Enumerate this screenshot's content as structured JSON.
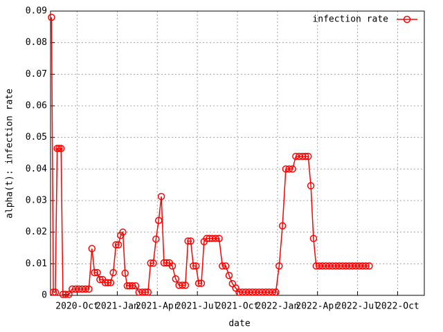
{
  "chart_data": {
    "type": "line",
    "xlabel": "date",
    "ylabel": "alpha(t): infection rate",
    "x": [
      "2020-08",
      "2020-08",
      "2020-08",
      "2020-08",
      "2020-08",
      "2020-08",
      "2020-08",
      "2020-09",
      "2020-09",
      "2020-09",
      "2020-09",
      "2020-10",
      "2020-10",
      "2020-10",
      "2020-10",
      "2020-11",
      "2020-11",
      "2020-11",
      "2020-11",
      "2020-11",
      "2020-12",
      "2020-12",
      "2020-12",
      "2020-12",
      "2020-12",
      "2021-01",
      "2021-01",
      "2021-01",
      "2021-01",
      "2021-01",
      "2021-01",
      "2021-02",
      "2021-02",
      "2021-02",
      "2021-02",
      "2021-03",
      "2021-03",
      "2021-03",
      "2021-03",
      "2021-03",
      "2021-04",
      "2021-04",
      "2021-04",
      "2021-04",
      "2021-04",
      "2021-05",
      "2021-05",
      "2021-05",
      "2021-05",
      "2021-06",
      "2021-06",
      "2021-06",
      "2021-06",
      "2021-06",
      "2021-07",
      "2021-07",
      "2021-07",
      "2021-07",
      "2021-07",
      "2021-08",
      "2021-08",
      "2021-08",
      "2021-08",
      "2021-09",
      "2021-09",
      "2021-09",
      "2021-09",
      "2021-10",
      "2021-10",
      "2021-10",
      "2021-10",
      "2021-11",
      "2021-11",
      "2021-11",
      "2021-11",
      "2021-12",
      "2021-12",
      "2021-12",
      "2021-12",
      "2022-01",
      "2022-01",
      "2022-01",
      "2022-01",
      "2022-02",
      "2022-02",
      "2022-02",
      "2022-02",
      "2022-03",
      "2022-03",
      "2022-03",
      "2022-03",
      "2022-03",
      "2022-04",
      "2022-04",
      "2022-04",
      "2022-04",
      "2022-05",
      "2022-05",
      "2022-05",
      "2022-05",
      "2022-06",
      "2022-06",
      "2022-06",
      "2022-06",
      "2022-07",
      "2022-07",
      "2022-07",
      "2022-07"
    ],
    "series": [
      {
        "name": "infection rate",
        "color": "#ff0000",
        "values": [
          0.088,
          0.001,
          0.001,
          0.0465,
          0.0465,
          0.0465,
          0.0003,
          0.0003,
          0.0003,
          0.002,
          0.002,
          0.002,
          0.002,
          0.002,
          0.002,
          0.0148,
          0.0072,
          0.0072,
          0.005,
          0.005,
          0.004,
          0.004,
          0.004,
          0.0072,
          0.016,
          0.016,
          0.019,
          0.02,
          0.007,
          0.003,
          0.003,
          0.003,
          0.003,
          0.001,
          0.001,
          0.001,
          0.001,
          0.0102,
          0.0102,
          0.0178,
          0.0237,
          0.0313,
          0.0103,
          0.0103,
          0.0103,
          0.0093,
          0.0052,
          0.0032,
          0.0032,
          0.0032,
          0.0172,
          0.0172,
          0.0093,
          0.0093,
          0.0038,
          0.0038,
          0.017,
          0.018,
          0.018,
          0.018,
          0.018,
          0.018,
          0.0093,
          0.0093,
          0.0063,
          0.0037,
          0.0023,
          0.001,
          0.001,
          0.001,
          0.001,
          0.001,
          0.001,
          0.001,
          0.001,
          0.001,
          0.001,
          0.001,
          0.001,
          0.0093,
          0.022,
          0.04,
          0.04,
          0.04,
          0.044,
          0.044,
          0.044,
          0.044,
          0.044,
          0.0347,
          0.018,
          0.0093,
          0.0093,
          0.0093,
          0.0093,
          0.0093,
          0.0093,
          0.0093,
          0.0093,
          0.0093,
          0.0093,
          0.0093,
          0.0093,
          0.0093,
          0.0093,
          0.0093,
          0.0093,
          0.0093
        ]
      }
    ],
    "xlim": [
      "2020-08",
      "2022-11"
    ],
    "xticks": [
      {
        "value": "2020-10",
        "label": "2020-Oct"
      },
      {
        "value": "2021-01",
        "label": "2021-Jan"
      },
      {
        "value": "2021-04",
        "label": "2021-Apr"
      },
      {
        "value": "2021-07",
        "label": "2021-Jul"
      },
      {
        "value": "2021-10",
        "label": "2021-Oct"
      },
      {
        "value": "2022-01",
        "label": "2022-Jan"
      },
      {
        "value": "2022-04",
        "label": "2022-Apr"
      },
      {
        "value": "2022-07",
        "label": "2022-Jul"
      },
      {
        "value": "2022-10",
        "label": "2022-Oct"
      }
    ],
    "ylim": [
      0,
      0.09
    ],
    "yticks": [
      0,
      0.01,
      0.02,
      0.03,
      0.04,
      0.05,
      0.06,
      0.07,
      0.08,
      0.09
    ],
    "grid": true,
    "legend": "top-right"
  }
}
